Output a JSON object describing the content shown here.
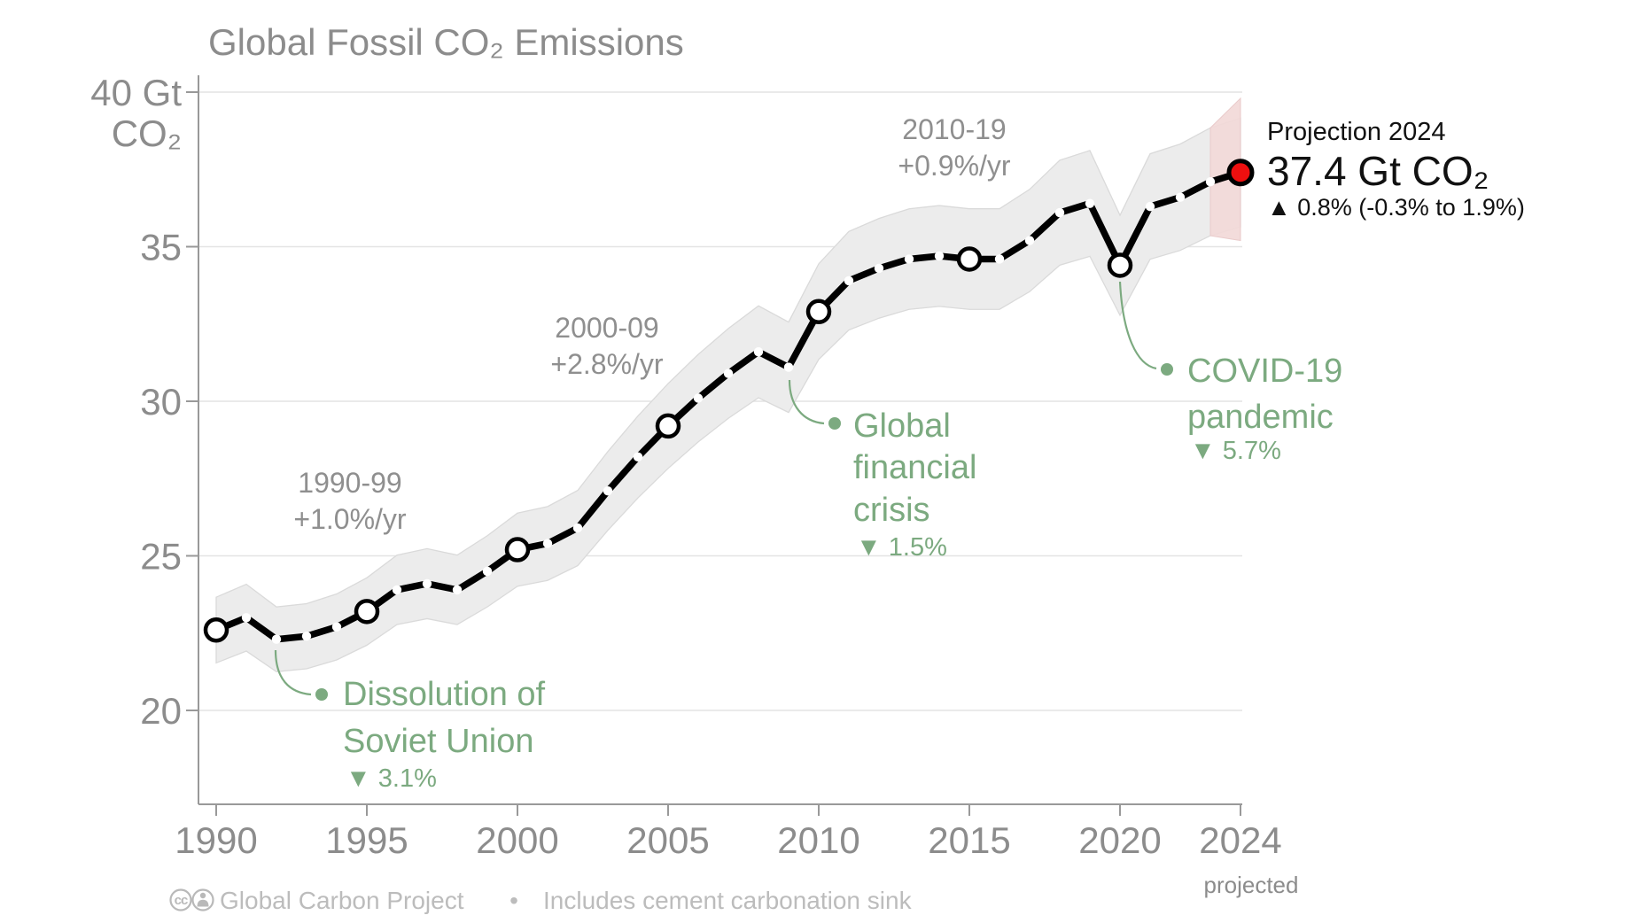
{
  "title": "Global Fossil CO₂ Emissions",
  "footer": {
    "license_icons": [
      "cc-icon",
      "attribution-person-icon"
    ],
    "cc_glyph": "cc",
    "attribution": "Global Carbon Project",
    "separator": "•",
    "note": "Includes cement carbonation sink"
  },
  "colors": {
    "line": "#000000",
    "projection_point": "#ee0f0f",
    "uncertainty_band": "#ececec",
    "projection_band": "#f2d9d8",
    "green_annotation": "#7caa80",
    "gray_text": "#8c8c8c",
    "footer_text": "#bcbcbc",
    "grid": "#e4e4e4",
    "axis": "#999999"
  },
  "chart_data": {
    "type": "line",
    "title": "Global Fossil CO₂ Emissions",
    "unit": "Gt CO₂",
    "xlabel": "",
    "ylabel": "Gt CO₂",
    "ylim": [
      17,
      40.6
    ],
    "grid": "horizontal",
    "x": [
      1990,
      1991,
      1992,
      1993,
      1994,
      1995,
      1996,
      1997,
      1998,
      1999,
      2000,
      2001,
      2002,
      2003,
      2004,
      2005,
      2006,
      2007,
      2008,
      2009,
      2010,
      2011,
      2012,
      2013,
      2014,
      2015,
      2016,
      2017,
      2018,
      2019,
      2020,
      2021,
      2022,
      2023,
      2024
    ],
    "series": [
      {
        "name": "Global fossil CO₂ emissions (Gt CO₂)",
        "values": [
          22.6,
          23.0,
          22.3,
          22.4,
          22.7,
          23.2,
          23.9,
          24.1,
          23.9,
          24.5,
          25.2,
          25.4,
          25.9,
          27.1,
          28.2,
          29.2,
          30.1,
          30.9,
          31.6,
          31.1,
          32.9,
          33.9,
          34.3,
          34.6,
          34.7,
          34.6,
          34.6,
          35.2,
          36.1,
          36.4,
          34.4,
          36.3,
          36.6,
          37.1,
          37.4
        ]
      }
    ],
    "uncertainty_pct": 4.7,
    "marker_years": [
      1990,
      1995,
      2000,
      2005,
      2010,
      2015,
      2020
    ],
    "yticks": [
      {
        "value": 40,
        "label": "40 Gt",
        "label2": "CO₂"
      },
      {
        "value": 35,
        "label": "35"
      },
      {
        "value": 30,
        "label": "30"
      },
      {
        "value": 25,
        "label": "25"
      },
      {
        "value": 20,
        "label": "20"
      }
    ],
    "xticks": [
      {
        "year": 1990,
        "label": "1990"
      },
      {
        "year": 1995,
        "label": "1995"
      },
      {
        "year": 2000,
        "label": "2000"
      },
      {
        "year": 2005,
        "label": "2005"
      },
      {
        "year": 2010,
        "label": "2010"
      },
      {
        "year": 2015,
        "label": "2015"
      },
      {
        "year": 2020,
        "label": "2020",
        "note": ""
      },
      {
        "year": 2024,
        "label": "2024",
        "sublabel": "projected"
      }
    ],
    "projection": {
      "year": 2024,
      "value": 37.4,
      "label": "Projection 2024",
      "value_label": "37.4 Gt CO₂",
      "change_label": "▲ 0.8% (-0.3% to 1.9%)",
      "band_range": [
        35.2,
        39.8
      ]
    },
    "period_growth_labels": [
      {
        "id": "p1990s",
        "lines": [
          "1990-99",
          "+1.0%/yr"
        ]
      },
      {
        "id": "p2000s",
        "lines": [
          "2000-09",
          "+2.8%/yr"
        ]
      },
      {
        "id": "p2010s",
        "lines": [
          "2010-19",
          "+0.9%/yr"
        ]
      }
    ],
    "events": [
      {
        "id": "soviet-union",
        "year": 1992,
        "lines": [
          "Dissolution of",
          "Soviet Union"
        ],
        "drop": "▼ 3.1%"
      },
      {
        "id": "financial-crisis",
        "year": 2009,
        "lines": [
          "Global",
          "financial",
          "crisis"
        ],
        "drop": "▼ 1.5%"
      },
      {
        "id": "covid-pandemic",
        "year": 2020,
        "lines": [
          "COVID-19",
          "pandemic"
        ],
        "drop": "▼ 5.7%"
      }
    ]
  }
}
